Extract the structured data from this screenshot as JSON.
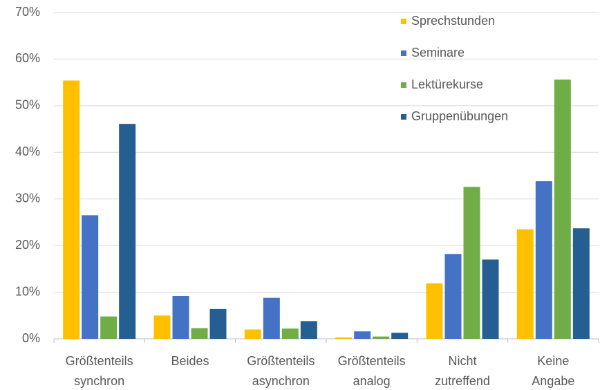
{
  "chart_data": {
    "type": "bar",
    "categories": [
      "Größtenteils synchron",
      "Beides",
      "Größtenteils asynchron",
      "Größtenteils analog",
      "Nicht zutreffend",
      "Keine Angabe"
    ],
    "series": [
      {
        "name": "Sprechstunden",
        "color": "#FFC000",
        "values": [
          55.4,
          5.0,
          2.0,
          0.3,
          11.9,
          23.5
        ]
      },
      {
        "name": "Seminare",
        "color": "#4472C4",
        "values": [
          26.5,
          9.2,
          8.8,
          1.6,
          18.2,
          33.8
        ]
      },
      {
        "name": "Lektürekurse",
        "color": "#70AD47",
        "values": [
          4.8,
          2.3,
          2.2,
          0.5,
          32.6,
          55.6
        ]
      },
      {
        "name": "Gruppenübungen",
        "color": "#255E91",
        "values": [
          46.1,
          6.4,
          3.8,
          1.3,
          17.0,
          23.7
        ]
      }
    ],
    "ylim": [
      0,
      70
    ],
    "yticks": [
      {
        "value": 0,
        "label": "0%"
      },
      {
        "value": 10,
        "label": "10%"
      },
      {
        "value": 20,
        "label": "20%"
      },
      {
        "value": 30,
        "label": "30%"
      },
      {
        "value": 40,
        "label": "40%"
      },
      {
        "value": 50,
        "label": "50%"
      },
      {
        "value": 60,
        "label": "60%"
      },
      {
        "value": 70,
        "label": "70%"
      }
    ],
    "grid": true,
    "legend": "top-right"
  }
}
